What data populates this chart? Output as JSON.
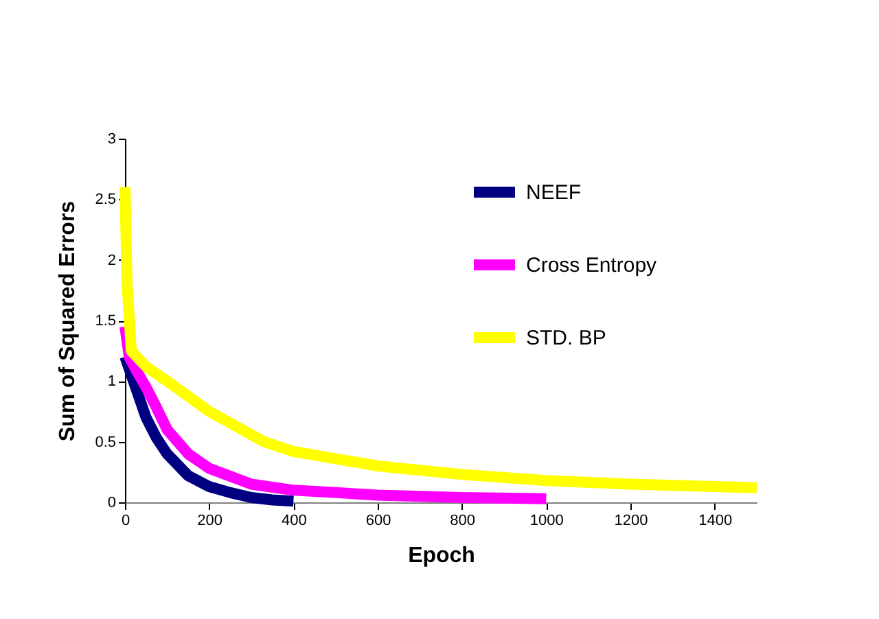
{
  "chart_data": {
    "type": "line",
    "xlabel": "Epoch",
    "ylabel": "Sum of Squared Errors",
    "xlim": [
      0,
      1500
    ],
    "xticks": [
      0,
      200,
      400,
      600,
      800,
      1000,
      1200,
      1400
    ],
    "ylim": [
      0,
      3
    ],
    "yticks": [
      0,
      0.5,
      1,
      1.5,
      2,
      2.5,
      3
    ],
    "grid": false,
    "legend": "top right",
    "marker": "none",
    "line_style": "solid",
    "series": [
      {
        "name": "NEEF",
        "color": "#000080",
        "x": [
          0,
          25,
          50,
          75,
          100,
          150,
          200,
          250,
          300,
          350,
          400
        ],
        "values": [
          1.2,
          0.95,
          0.7,
          0.53,
          0.4,
          0.22,
          0.13,
          0.08,
          0.04,
          0.02,
          0.01
        ]
      },
      {
        "name": "Cross Entropy",
        "color": "#ff00ff",
        "x": [
          0,
          10,
          25,
          50,
          75,
          100,
          150,
          200,
          300,
          400,
          600,
          800,
          1000
        ],
        "values": [
          1.45,
          1.2,
          1.1,
          0.95,
          0.78,
          0.6,
          0.4,
          0.28,
          0.15,
          0.1,
          0.06,
          0.04,
          0.03
        ]
      },
      {
        "name": "STD. BP",
        "color": "#ffff00",
        "x": [
          0,
          5,
          15,
          50,
          100,
          200,
          330,
          400,
          600,
          800,
          1000,
          1200,
          1500
        ],
        "values": [
          2.6,
          1.8,
          1.25,
          1.12,
          1.0,
          0.75,
          0.5,
          0.42,
          0.3,
          0.23,
          0.18,
          0.15,
          0.12
        ]
      }
    ]
  }
}
